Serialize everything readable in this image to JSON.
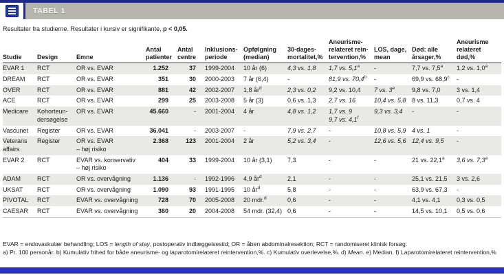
{
  "header": {
    "tab_label": "TABEL 1"
  },
  "caption": {
    "normal": "Resultater fra studierne. Resultater i kursiv er signifikante, ",
    "bold": "p < 0,05."
  },
  "table": {
    "columns": [
      {
        "label": "Studie"
      },
      {
        "label": "Design"
      },
      {
        "label": "Emne"
      },
      {
        "label": "Antal\npatienter"
      },
      {
        "label": "Antal\ncentre"
      },
      {
        "label": "Inklusions-\nperiode"
      },
      {
        "label": "Opfølgning\n(median)"
      },
      {
        "label": "30-dages-\nmortalitet,%"
      },
      {
        "label": "Aneurisme-\nrelateret rein-\ntervention,%"
      },
      {
        "label": "LOS, dage,\nmean"
      },
      {
        "label": "Død: alle\nårsager,%"
      },
      {
        "label": "Aneurisme\nrelateret\ndød,%"
      }
    ],
    "rows": [
      {
        "shaded": true,
        "cells": [
          {
            "t": "EVAR 1"
          },
          {
            "t": "RCT"
          },
          {
            "t": "OR vs. EVAR"
          },
          {
            "t": "1.252",
            "b": true
          },
          {
            "t": "37",
            "b": true
          },
          {
            "t": "1999-2004"
          },
          {
            "t": "10 år (6)"
          },
          {
            "t": "4,3 vs. 1,8",
            "i": true
          },
          {
            "t": "1,7 vs. 5,1",
            "sup": "a",
            "i": true
          },
          {
            "t": "-"
          },
          {
            "t": "7,7 vs. 7,5",
            "sup": "a"
          },
          {
            "t": "1,2 vs. 1,0",
            "sup": "a"
          }
        ]
      },
      {
        "shaded": false,
        "cells": [
          {
            "t": "DREAM"
          },
          {
            "t": "RCT"
          },
          {
            "t": "OR vs. EVAR"
          },
          {
            "t": "351",
            "b": true
          },
          {
            "t": "30",
            "b": true
          },
          {
            "t": "2000-2003"
          },
          {
            "t": "7 år (6,4)"
          },
          {
            "t": "-"
          },
          {
            "t": "81,9 vs. 70,4",
            "sup": "b",
            "i": true
          },
          {
            "t": "-"
          },
          {
            "t": "69,9 vs. 68,9",
            "sup": "c"
          },
          {
            "t": "-"
          }
        ]
      },
      {
        "shaded": true,
        "cells": [
          {
            "t": "OVER"
          },
          {
            "t": "RCT"
          },
          {
            "t": "OR vs. EVAR"
          },
          {
            "t": "881",
            "b": true
          },
          {
            "t": "42",
            "b": true
          },
          {
            "t": "2002-2007"
          },
          {
            "t": "1,8 år",
            "sup": "d"
          },
          {
            "t": "2,3 vs. 0,2",
            "i": true
          },
          {
            "t": "9,2 vs. 10,4"
          },
          {
            "t": "7 vs. 3",
            "sup": "e",
            "i": true
          },
          {
            "t": "9,8 vs. 7,0"
          },
          {
            "t": "3 vs. 1,4"
          }
        ]
      },
      {
        "shaded": false,
        "cells": [
          {
            "t": "ACE"
          },
          {
            "t": "RCT"
          },
          {
            "t": "OR vs. EVAR"
          },
          {
            "t": "299",
            "b": true
          },
          {
            "t": "25",
            "b": true
          },
          {
            "t": "2003-2008"
          },
          {
            "t": "5 år (3)"
          },
          {
            "t": "0,6 vs. 1,3"
          },
          {
            "t": "2,7 vs. 16",
            "i": true
          },
          {
            "t": "10,4 vs. 5,8",
            "i": true
          },
          {
            "t": "8 vs. 11,3"
          },
          {
            "t": "0,7 vs. 4"
          }
        ]
      },
      {
        "shaded": true,
        "cells": [
          {
            "t": "Medicare"
          },
          {
            "t": "Kohorteun-\ndersøgelse"
          },
          {
            "t": "OR vs. EVAR"
          },
          {
            "t": "45.660",
            "b": true
          },
          {
            "t": "-"
          },
          {
            "t": "2001-2004"
          },
          {
            "t": "4 år"
          },
          {
            "t": "4,8 vs. 1,2",
            "i": true
          },
          {
            "t": "1,7 vs. 9\n9,7 vs. 4,1",
            "sup": "f",
            "i": true
          },
          {
            "t": "9,3 vs. 3,4",
            "i": true
          },
          {
            "t": "-"
          },
          {
            "t": "-"
          }
        ]
      },
      {
        "shaded": false,
        "cells": [
          {
            "t": "Vascunet"
          },
          {
            "t": "Register"
          },
          {
            "t": "OR vs. EVAR"
          },
          {
            "t": "36.041",
            "b": true
          },
          {
            "t": "-"
          },
          {
            "t": "2003-2007"
          },
          {
            "t": "-"
          },
          {
            "t": "7,9 vs. 2,7",
            "i": true
          },
          {
            "t": "-"
          },
          {
            "t": "10,8 vs. 5,9",
            "i": true
          },
          {
            "t": "4 vs. 1",
            "i": true
          },
          {
            "t": "-"
          }
        ]
      },
      {
        "shaded": true,
        "cells": [
          {
            "t": "Veterans\naffairs"
          },
          {
            "t": "Register"
          },
          {
            "t": "OR vs. EVAR\n– høj risiko"
          },
          {
            "t": "2.368",
            "b": true
          },
          {
            "t": "123",
            "b": true
          },
          {
            "t": "2001-2004"
          },
          {
            "t": "2 år"
          },
          {
            "t": "5,2 vs. 3,4",
            "i": true
          },
          {
            "t": "-"
          },
          {
            "t": "12,6 vs. 5,6",
            "i": true
          },
          {
            "t": "12,4 vs. 9,5",
            "i": true
          },
          {
            "t": "-"
          }
        ]
      },
      {
        "shaded": false,
        "cells": [
          {
            "t": "EVAR 2"
          },
          {
            "t": "RCT"
          },
          {
            "t": "EVAR vs. konservativ\n– høj risiko"
          },
          {
            "t": "404",
            "b": true
          },
          {
            "t": "33",
            "b": true
          },
          {
            "t": "1999-2004"
          },
          {
            "t": "10 år (3,1)"
          },
          {
            "t": "7,3"
          },
          {
            "t": "-"
          },
          {
            "t": "-"
          },
          {
            "t": "21 vs. 22,1",
            "sup": "a"
          },
          {
            "t": "3,6 vs. 7,3",
            "sup": "a",
            "i": true
          }
        ]
      },
      {
        "shaded": true,
        "cells": [
          {
            "t": "ADAM"
          },
          {
            "t": "RCT"
          },
          {
            "t": "OR vs. overvågning"
          },
          {
            "t": "1.136",
            "b": true
          },
          {
            "t": "-"
          },
          {
            "t": "1992-1996"
          },
          {
            "t": "4,9 år",
            "sup": "d"
          },
          {
            "t": "2,1"
          },
          {
            "t": "-"
          },
          {
            "t": "-"
          },
          {
            "t": "25,1 vs. 21,5"
          },
          {
            "t": "3 vs. 2,6"
          }
        ]
      },
      {
        "shaded": false,
        "cells": [
          {
            "t": "UKSAT"
          },
          {
            "t": "RCT"
          },
          {
            "t": "OR vs. overvågning"
          },
          {
            "t": "1.090",
            "b": true
          },
          {
            "t": "93",
            "b": true
          },
          {
            "t": "1991-1995"
          },
          {
            "t": "10 år",
            "sup": "d"
          },
          {
            "t": "5,8"
          },
          {
            "t": "-"
          },
          {
            "t": "-"
          },
          {
            "t": "63,9 vs. 67,3"
          },
          {
            "t": "-"
          }
        ]
      },
      {
        "shaded": true,
        "cells": [
          {
            "t": "PIVOTAL"
          },
          {
            "t": "RCT"
          },
          {
            "t": "EVAR vs. overvågning"
          },
          {
            "t": "728",
            "b": true
          },
          {
            "t": "70",
            "b": true
          },
          {
            "t": "2005-2008"
          },
          {
            "t": "20 mdr.",
            "sup": "d"
          },
          {
            "t": "0,6"
          },
          {
            "t": "-"
          },
          {
            "t": "-"
          },
          {
            "t": "4,1 vs. 4,1"
          },
          {
            "t": "0,3 vs. 0,5"
          }
        ]
      },
      {
        "shaded": false,
        "cells": [
          {
            "t": "CAESAR"
          },
          {
            "t": "RCT"
          },
          {
            "t": "EVAR vs. overvågning"
          },
          {
            "t": "360",
            "b": true
          },
          {
            "t": "20",
            "b": true
          },
          {
            "t": "2004-2008"
          },
          {
            "t": "54 mdr. (32,4)"
          },
          {
            "t": "0,6"
          },
          {
            "t": "-"
          },
          {
            "t": "-"
          },
          {
            "t": "14,5 vs. 10,1"
          },
          {
            "t": "0,5 vs. 0,6"
          }
        ]
      }
    ]
  },
  "footnotes": [
    {
      "segments": [
        {
          "t": "EVAR = endovaskulær behandling; LOS = "
        },
        {
          "t": "length of stay",
          "i": true
        },
        {
          "t": ", postoperativ indlæggelsestid; OR = åben abdominalresektion; RCT = randomiseret klinisk forsøg."
        }
      ]
    },
    {
      "segments": [
        {
          "t": "a) Pr. 100 personår. b) Kumulativ frihed for både aneurisme- og laparotomirelateret reintervention,%. c) Kumulativ overlevelse,%. d) "
        },
        {
          "t": "Mean",
          "i": true
        },
        {
          "t": ". e) Median. f) Laparotomirelateret reintervention,%"
        }
      ]
    }
  ]
}
